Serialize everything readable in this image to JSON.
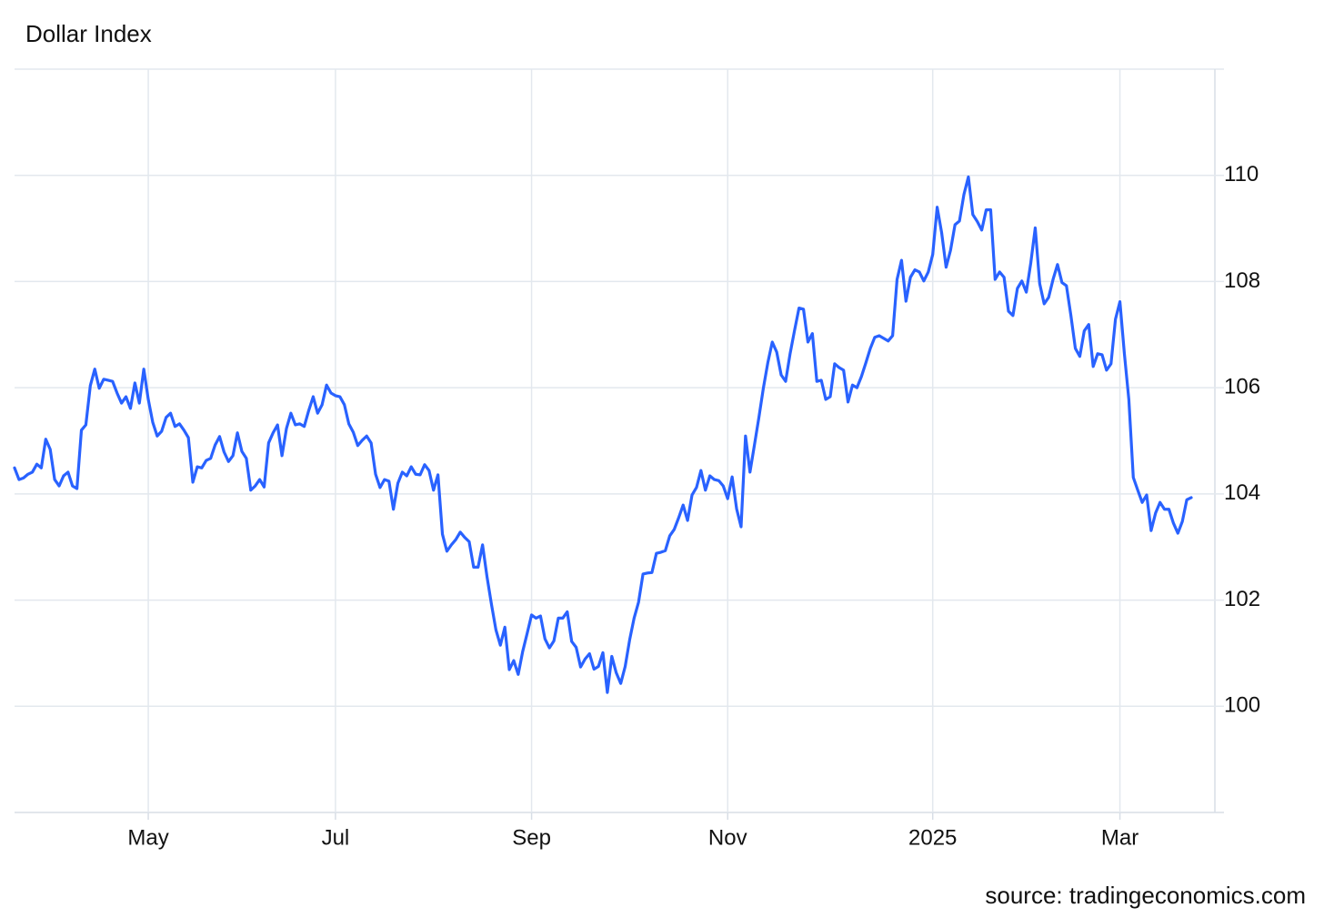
{
  "chart_data": {
    "type": "line",
    "title": "Dollar Index",
    "source": "source: tradingeconomics.com",
    "categories": [
      null,
      null,
      null,
      null,
      null,
      null,
      null,
      null,
      null,
      null,
      null,
      null,
      null,
      null,
      null,
      null,
      null,
      null,
      null,
      null,
      null,
      null,
      null,
      null,
      null,
      null,
      null,
      null,
      null,
      null,
      "May",
      null,
      null,
      null,
      null,
      null,
      null,
      null,
      null,
      null,
      null,
      null,
      null,
      null,
      null,
      null,
      null,
      null,
      null,
      null,
      null,
      null,
      null,
      null,
      null,
      null,
      null,
      null,
      null,
      null,
      null,
      null,
      null,
      null,
      null,
      null,
      null,
      null,
      null,
      null,
      null,
      null,
      "Jul",
      null,
      null,
      null,
      null,
      null,
      null,
      null,
      null,
      null,
      null,
      null,
      null,
      null,
      null,
      null,
      null,
      null,
      null,
      null,
      null,
      null,
      null,
      null,
      null,
      null,
      null,
      null,
      null,
      null,
      null,
      null,
      null,
      null,
      null,
      null,
      null,
      null,
      null,
      null,
      null,
      null,
      null,
      null,
      "Sep",
      null,
      null,
      null,
      null,
      null,
      null,
      null,
      null,
      null,
      null,
      null,
      null,
      null,
      null,
      null,
      null,
      null,
      null,
      null,
      null,
      null,
      null,
      null,
      null,
      null,
      null,
      null,
      null,
      null,
      null,
      null,
      null,
      null,
      null,
      null,
      null,
      null,
      null,
      null,
      null,
      null,
      null,
      null,
      "Nov",
      null,
      null,
      null,
      null,
      null,
      null,
      null,
      null,
      null,
      null,
      null,
      null,
      null,
      null,
      null,
      null,
      null,
      null,
      null,
      null,
      null,
      null,
      null,
      null,
      null,
      null,
      null,
      null,
      null,
      null,
      null,
      null,
      null,
      null,
      null,
      null,
      null,
      null,
      null,
      null,
      null,
      null,
      null,
      null,
      null,
      "2025",
      null,
      null,
      null,
      null,
      null,
      null,
      null,
      null,
      null,
      null,
      null,
      null,
      null,
      null,
      null,
      null,
      null,
      null,
      null,
      null,
      null,
      null,
      null,
      null,
      null,
      null,
      null,
      null,
      null,
      null,
      null,
      null,
      null,
      null,
      null,
      null,
      null,
      null,
      null,
      null,
      null,
      "Mar",
      null,
      null,
      null,
      null,
      null,
      null,
      null,
      null,
      null,
      null,
      null,
      null,
      null,
      null,
      null,
      null
    ],
    "values": [
      104.49,
      104.27,
      104.3,
      104.37,
      104.41,
      104.56,
      104.49,
      105.03,
      104.84,
      104.27,
      104.15,
      104.34,
      104.41,
      104.15,
      104.1,
      105.2,
      105.3,
      106.04,
      106.35,
      105.99,
      106.16,
      106.14,
      106.12,
      105.9,
      105.71,
      105.83,
      105.61,
      106.09,
      105.71,
      106.35,
      105.78,
      105.35,
      105.09,
      105.18,
      105.44,
      105.52,
      105.27,
      105.32,
      105.2,
      105.06,
      104.22,
      104.51,
      104.49,
      104.63,
      104.67,
      104.92,
      105.08,
      104.79,
      104.61,
      104.72,
      105.15,
      104.8,
      104.67,
      104.07,
      104.15,
      104.27,
      104.13,
      104.96,
      105.15,
      105.3,
      104.72,
      105.23,
      105.52,
      105.3,
      105.32,
      105.27,
      105.57,
      105.83,
      105.52,
      105.68,
      106.05,
      105.9,
      105.85,
      105.83,
      105.68,
      105.32,
      105.16,
      104.91,
      105.01,
      105.09,
      104.96,
      104.37,
      104.12,
      104.27,
      104.24,
      103.71,
      104.2,
      104.41,
      104.34,
      104.51,
      104.37,
      104.36,
      104.55,
      104.44,
      104.07,
      104.36,
      103.24,
      102.92,
      103.04,
      103.14,
      103.28,
      103.18,
      103.1,
      102.62,
      102.62,
      103.04,
      102.44,
      101.92,
      101.44,
      101.15,
      101.49,
      100.69,
      100.86,
      100.6,
      101.03,
      101.37,
      101.72,
      101.66,
      101.7,
      101.27,
      101.1,
      101.23,
      101.66,
      101.66,
      101.78,
      101.22,
      101.11,
      100.74,
      100.89,
      100.99,
      100.7,
      100.75,
      101.01,
      100.26,
      100.94,
      100.63,
      100.43,
      100.75,
      101.25,
      101.66,
      101.96,
      102.49,
      102.51,
      102.52,
      102.88,
      102.9,
      102.93,
      103.21,
      103.33,
      103.55,
      103.79,
      103.5,
      103.98,
      104.12,
      104.44,
      104.07,
      104.34,
      104.27,
      104.25,
      104.15,
      103.91,
      104.32,
      103.72,
      103.38,
      105.09,
      104.41,
      104.92,
      105.44,
      105.99,
      106.47,
      106.86,
      106.67,
      106.24,
      106.12,
      106.64,
      107.08,
      107.5,
      107.48,
      106.86,
      107.02,
      106.12,
      106.14,
      105.78,
      105.83,
      106.45,
      106.38,
      106.33,
      105.73,
      106.05,
      106.0,
      106.21,
      106.47,
      106.74,
      106.95,
      106.98,
      106.93,
      106.88,
      106.98,
      108.04,
      108.4,
      107.63,
      108.08,
      108.22,
      108.18,
      108.01,
      108.18,
      108.51,
      109.4,
      108.92,
      108.27,
      108.59,
      109.07,
      109.14,
      109.64,
      109.97,
      109.26,
      109.13,
      108.97,
      109.35,
      109.35,
      108.04,
      108.18,
      108.08,
      107.44,
      107.36,
      107.87,
      108.01,
      107.8,
      108.35,
      109.01,
      107.96,
      107.58,
      107.7,
      108.04,
      108.32,
      107.98,
      107.92,
      107.36,
      106.74,
      106.59,
      107.07,
      107.19,
      106.4,
      106.64,
      106.62,
      106.33,
      106.45,
      107.29,
      107.62,
      106.64,
      105.78,
      104.31,
      104.07,
      103.84,
      103.98,
      103.31,
      103.64,
      103.84,
      103.71,
      103.71,
      103.45,
      103.26,
      103.48,
      103.89,
      103.93
    ],
    "color": "#2962ff",
    "ylim": [
      98,
      112
    ],
    "yticks": [
      100,
      102,
      104,
      106,
      108,
      110
    ],
    "grid": true
  }
}
